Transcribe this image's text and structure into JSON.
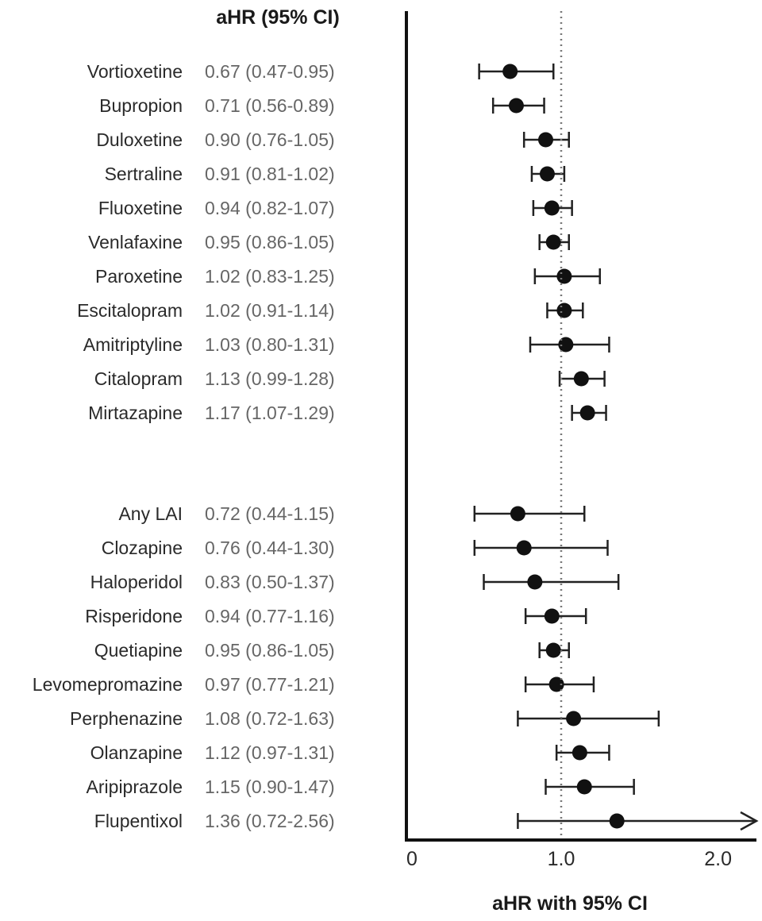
{
  "chart_data": {
    "type": "forest",
    "column_header": "aHR (95% CI)",
    "xlabel": "aHR with 95% CI",
    "xlim": [
      0,
      2.2
    ],
    "x_ticks": [
      {
        "value": 0,
        "label": "0"
      },
      {
        "value": 1.0,
        "label": "1.0"
      },
      {
        "value": 2.0,
        "label": "2.0"
      }
    ],
    "reference_line": 1.0,
    "groups": [
      {
        "rows": [
          {
            "drug": "Vortioxetine",
            "ci_text": "0.67 (0.47-0.95)",
            "hr": 0.67,
            "lo": 0.47,
            "hi": 0.95
          },
          {
            "drug": "Bupropion",
            "ci_text": "0.71 (0.56-0.89)",
            "hr": 0.71,
            "lo": 0.56,
            "hi": 0.89
          },
          {
            "drug": "Duloxetine",
            "ci_text": "0.90 (0.76-1.05)",
            "hr": 0.9,
            "lo": 0.76,
            "hi": 1.05
          },
          {
            "drug": "Sertraline",
            "ci_text": "0.91 (0.81-1.02)",
            "hr": 0.91,
            "lo": 0.81,
            "hi": 1.02
          },
          {
            "drug": "Fluoxetine",
            "ci_text": "0.94 (0.82-1.07)",
            "hr": 0.94,
            "lo": 0.82,
            "hi": 1.07
          },
          {
            "drug": "Venlafaxine",
            "ci_text": "0.95 (0.86-1.05)",
            "hr": 0.95,
            "lo": 0.86,
            "hi": 1.05
          },
          {
            "drug": "Paroxetine",
            "ci_text": "1.02 (0.83-1.25)",
            "hr": 1.02,
            "lo": 0.83,
            "hi": 1.25
          },
          {
            "drug": "Escitalopram",
            "ci_text": "1.02 (0.91-1.14)",
            "hr": 1.02,
            "lo": 0.91,
            "hi": 1.14
          },
          {
            "drug": "Amitriptyline",
            "ci_text": "1.03 (0.80-1.31)",
            "hr": 1.03,
            "lo": 0.8,
            "hi": 1.31
          },
          {
            "drug": "Citalopram",
            "ci_text": "1.13 (0.99-1.28)",
            "hr": 1.13,
            "lo": 0.99,
            "hi": 1.28
          },
          {
            "drug": "Mirtazapine",
            "ci_text": "1.17 (1.07-1.29)",
            "hr": 1.17,
            "lo": 1.07,
            "hi": 1.29
          }
        ]
      },
      {
        "rows": [
          {
            "drug": "Any LAI",
            "ci_text": "0.72 (0.44-1.15)",
            "hr": 0.72,
            "lo": 0.44,
            "hi": 1.15
          },
          {
            "drug": "Clozapine",
            "ci_text": "0.76 (0.44-1.30)",
            "hr": 0.76,
            "lo": 0.44,
            "hi": 1.3
          },
          {
            "drug": "Haloperidol",
            "ci_text": "0.83 (0.50-1.37)",
            "hr": 0.83,
            "lo": 0.5,
            "hi": 1.37
          },
          {
            "drug": "Risperidone",
            "ci_text": "0.94 (0.77-1.16)",
            "hr": 0.94,
            "lo": 0.77,
            "hi": 1.16
          },
          {
            "drug": "Quetiapine",
            "ci_text": "0.95 (0.86-1.05)",
            "hr": 0.95,
            "lo": 0.86,
            "hi": 1.05
          },
          {
            "drug": "Levomepromazine",
            "ci_text": "0.97 (0.77-1.21)",
            "hr": 0.97,
            "lo": 0.77,
            "hi": 1.21
          },
          {
            "drug": "Perphenazine",
            "ci_text": "1.08 (0.72-1.63)",
            "hr": 1.08,
            "lo": 0.72,
            "hi": 1.63
          },
          {
            "drug": "Olanzapine",
            "ci_text": "1.12 (0.97-1.31)",
            "hr": 1.12,
            "lo": 0.97,
            "hi": 1.31
          },
          {
            "drug": "Aripiprazole",
            "ci_text": "1.15 (0.90-1.47)",
            "hr": 1.15,
            "lo": 0.9,
            "hi": 1.47
          },
          {
            "drug": "Flupentixol",
            "ci_text": "1.36 (0.72-2.56)",
            "hr": 1.36,
            "lo": 0.72,
            "hi": 2.56
          }
        ]
      }
    ]
  }
}
